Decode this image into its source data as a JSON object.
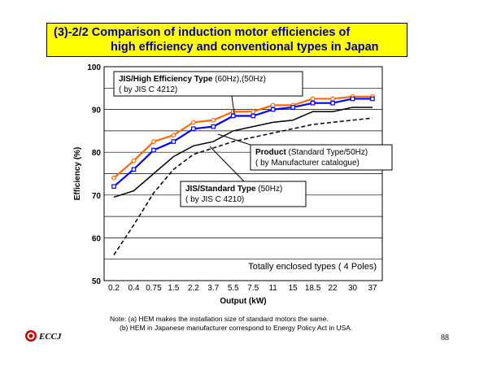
{
  "slide": {
    "title_line1": "(3)-2/2  Comparison of induction motor efficiencies of",
    "title_line2": "high efficiency and conventional types in Japan",
    "note_line1": "Note: (a) HEM makes the installation size of standard motors the same.",
    "note_line2": "(b) HEM in Japanese manufacturer correspond to Energy Policy Act in USA.",
    "logo_text": "ECCJ",
    "page_number": "88",
    "title_bg_color": "#ffff00",
    "title_text_color": "#000099"
  },
  "chart_data": {
    "type": "line",
    "xlabel": "Output (kW)",
    "ylabel": "Efficiency (%)",
    "ylim": [
      50,
      100
    ],
    "yticks": [
      "50",
      "60",
      "70",
      "80",
      "90",
      "100"
    ],
    "categories": [
      "0.2",
      "0.4",
      "0.75",
      "1.5",
      "2.2",
      "3.7",
      "5.5",
      "7.5",
      "11",
      "15",
      "18.5",
      "22",
      "30",
      "37"
    ],
    "grid": true,
    "inner_label": "Totally enclosed types ( 4 Poles)",
    "series": [
      {
        "name": "JIS/High Efficiency Type (60Hz)",
        "color": "#ff6600",
        "marker": "circle",
        "values": [
          74,
          78,
          82.5,
          84,
          87,
          87.5,
          89.5,
          89.5,
          91,
          91,
          92.5,
          92.5,
          93,
          93
        ]
      },
      {
        "name": "JIS/High Efficiency Type (50Hz)",
        "color": "#0000ff",
        "marker": "square",
        "values": [
          72,
          76,
          80.5,
          82.5,
          85.5,
          86,
          88.5,
          88.5,
          90,
          90.5,
          91.5,
          91.5,
          92.5,
          92.5
        ]
      },
      {
        "name": "JIS/Standard Type (50Hz)",
        "color": "#000000",
        "dash": "solid",
        "values": [
          69.5,
          71,
          75,
          79,
          81.5,
          82.5,
          85,
          86,
          87,
          87.5,
          89.5,
          89.5,
          90.5,
          90.5
        ]
      },
      {
        "name": "Product (Standard Type/50Hz)",
        "color": "#000000",
        "dash": "dashed",
        "values": [
          56,
          63,
          70.5,
          76,
          79.5,
          81,
          82.5,
          83.5,
          84.5,
          85.5,
          86.5,
          87,
          87.5,
          88
        ]
      }
    ],
    "annotations": [
      {
        "id": "ann-high",
        "bold": "JIS/High Efficiency Type",
        "normal": " (60Hz),(50Hz)",
        "line2": "( by JIS C 4212)"
      },
      {
        "id": "ann-product",
        "bold": "Product",
        "normal": " (Standard Type/50Hz)",
        "line2": "( by Manufacturer catalogue)"
      },
      {
        "id": "ann-standard",
        "bold": "JIS/Standard Type",
        "normal": " (50Hz)",
        "line2": "( by JIS C 4210)"
      }
    ]
  }
}
